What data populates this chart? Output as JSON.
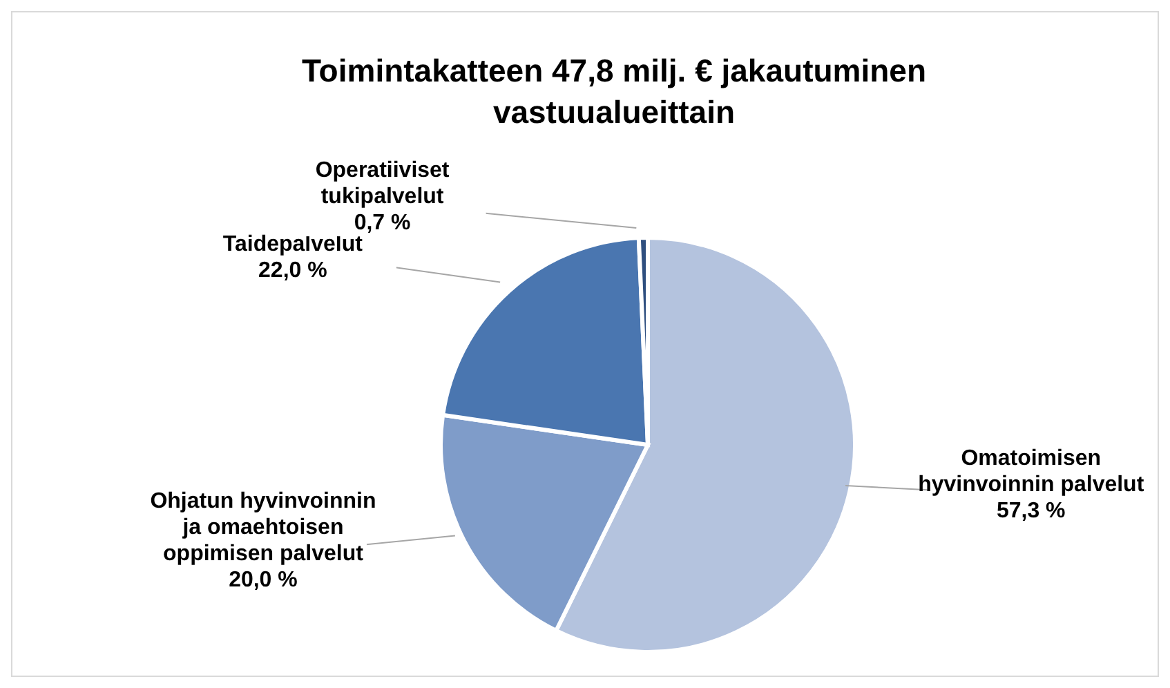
{
  "chart_data": {
    "type": "pie",
    "title": "Toimintakatteen 47,8 milj. € jakautuminen vastuualueittain",
    "categories": [
      "Omatoimisen hyvinvoinnin palvelut",
      "Ohjatun hyvinvoinnin ja omaehtoisen oppimisen palvelut",
      "Taidepalvelut",
      "Operatiiviset tukipalvelut"
    ],
    "values": [
      57.3,
      20.0,
      22.0,
      0.7
    ],
    "colors": [
      "#b4c3de",
      "#7f9cc9",
      "#4a76b0",
      "#2f4f7f"
    ],
    "value_labels": [
      "57,3 %",
      "20,0 %",
      "22,0 %",
      "0,7 %"
    ],
    "legend": false
  }
}
